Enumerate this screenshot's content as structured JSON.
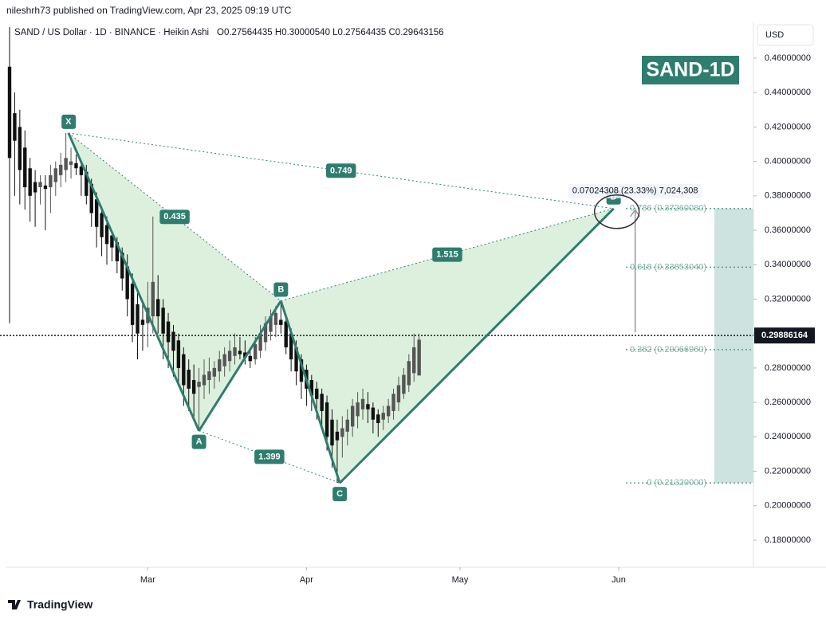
{
  "header": {
    "publisher": "nileshrh73 published on TradingView.com, Apr 23, 2025 09:19 UTC",
    "symbol": "SAND / US Dollar · 1D · BINANCE · Heikin Ashi",
    "ohlc": "O0.27564435 H0.30000540 L0.27564435 C0.29643156",
    "currency": "USD"
  },
  "footer": {
    "brand": "TradingView"
  },
  "chart_data": {
    "type": "candlestick",
    "title": "SAND-1D",
    "up_color": "#555555",
    "down_color": "#111111",
    "xlim": [
      0,
      145
    ],
    "xticks": [
      {
        "value": 27,
        "label": "Mar"
      },
      {
        "value": 58,
        "label": "Apr"
      },
      {
        "value": 88,
        "label": "May"
      },
      {
        "value": 119,
        "label": "Jun"
      }
    ],
    "ylim": [
      0.1675,
      0.4808
    ],
    "yticks": [
      {
        "value": 0.18,
        "label": "0.18000000"
      },
      {
        "value": 0.2,
        "label": "0.20000000"
      },
      {
        "value": 0.22,
        "label": "0.22000000"
      },
      {
        "value": 0.24,
        "label": "0.24000000"
      },
      {
        "value": 0.26,
        "label": "0.26000000"
      },
      {
        "value": 0.28,
        "label": "0.28000000"
      },
      {
        "value": 0.3,
        "label": "0.30000000"
      },
      {
        "value": 0.32,
        "label": "0.32000000"
      },
      {
        "value": 0.34,
        "label": "0.34000000"
      },
      {
        "value": 0.36,
        "label": "0.36000000"
      },
      {
        "value": 0.38,
        "label": "0.38000000"
      },
      {
        "value": 0.4,
        "label": "0.40000000"
      },
      {
        "value": 0.42,
        "label": "0.42000000"
      },
      {
        "value": 0.44,
        "label": "0.44000000"
      },
      {
        "value": 0.46,
        "label": "0.46000000"
      }
    ],
    "candles": [
      [
        0.455,
        0.478,
        0.306,
        0.402
      ],
      [
        0.428,
        0.44,
        0.38,
        0.412
      ],
      [
        0.42,
        0.43,
        0.375,
        0.395
      ],
      [
        0.408,
        0.418,
        0.372,
        0.385
      ],
      [
        0.396,
        0.402,
        0.365,
        0.38
      ],
      [
        0.388,
        0.395,
        0.362,
        0.382
      ],
      [
        0.385,
        0.392,
        0.375,
        0.388
      ],
      [
        0.386,
        0.392,
        0.36,
        0.384
      ],
      [
        0.385,
        0.398,
        0.37,
        0.392
      ],
      [
        0.388,
        0.4,
        0.38,
        0.396
      ],
      [
        0.392,
        0.405,
        0.385,
        0.398
      ],
      [
        0.395,
        0.4165,
        0.388,
        0.402
      ],
      [
        0.398,
        0.408,
        0.39,
        0.4
      ],
      [
        0.399,
        0.404,
        0.392,
        0.396
      ],
      [
        0.397,
        0.4,
        0.38,
        0.392
      ],
      [
        0.394,
        0.398,
        0.375,
        0.38
      ],
      [
        0.387,
        0.39,
        0.362,
        0.37
      ],
      [
        0.378,
        0.382,
        0.35,
        0.362
      ],
      [
        0.37,
        0.374,
        0.345,
        0.356
      ],
      [
        0.363,
        0.368,
        0.34,
        0.352
      ],
      [
        0.357,
        0.36,
        0.342,
        0.35
      ],
      [
        0.353,
        0.356,
        0.335,
        0.342
      ],
      [
        0.347,
        0.35,
        0.325,
        0.332
      ],
      [
        0.339,
        0.346,
        0.31,
        0.32
      ],
      [
        0.329,
        0.335,
        0.295,
        0.305
      ],
      [
        0.317,
        0.325,
        0.285,
        0.3
      ],
      [
        0.308,
        0.318,
        0.29,
        0.305
      ],
      [
        0.306,
        0.33,
        0.292,
        0.315
      ],
      [
        0.31,
        0.368,
        0.3,
        0.33
      ],
      [
        0.32,
        0.334,
        0.3,
        0.31
      ],
      [
        0.315,
        0.32,
        0.285,
        0.3
      ],
      [
        0.307,
        0.312,
        0.28,
        0.295
      ],
      [
        0.301,
        0.305,
        0.275,
        0.29
      ],
      [
        0.296,
        0.3,
        0.27,
        0.28
      ],
      [
        0.288,
        0.292,
        0.258,
        0.27
      ],
      [
        0.279,
        0.285,
        0.255,
        0.268
      ],
      [
        0.273,
        0.282,
        0.25,
        0.265
      ],
      [
        0.269,
        0.28,
        0.2435,
        0.272
      ],
      [
        0.27,
        0.285,
        0.262,
        0.276
      ],
      [
        0.273,
        0.286,
        0.265,
        0.278
      ],
      [
        0.275,
        0.284,
        0.268,
        0.28
      ],
      [
        0.278,
        0.29,
        0.272,
        0.285
      ],
      [
        0.281,
        0.292,
        0.275,
        0.288
      ],
      [
        0.284,
        0.296,
        0.278,
        0.29
      ],
      [
        0.287,
        0.3,
        0.282,
        0.292
      ],
      [
        0.29,
        0.298,
        0.285,
        0.288
      ],
      [
        0.289,
        0.296,
        0.282,
        0.286
      ],
      [
        0.287,
        0.292,
        0.28,
        0.284
      ],
      [
        0.285,
        0.298,
        0.282,
        0.294
      ],
      [
        0.29,
        0.305,
        0.286,
        0.3
      ],
      [
        0.295,
        0.31,
        0.29,
        0.306
      ],
      [
        0.301,
        0.314,
        0.296,
        0.31
      ],
      [
        0.305,
        0.316,
        0.298,
        0.312
      ],
      [
        0.308,
        0.319,
        0.3,
        0.305
      ],
      [
        0.307,
        0.31,
        0.288,
        0.292
      ],
      [
        0.3,
        0.303,
        0.278,
        0.285
      ],
      [
        0.292,
        0.296,
        0.27,
        0.278
      ],
      [
        0.285,
        0.288,
        0.262,
        0.272
      ],
      [
        0.279,
        0.282,
        0.258,
        0.268
      ],
      [
        0.273,
        0.276,
        0.255,
        0.264
      ],
      [
        0.268,
        0.272,
        0.25,
        0.262
      ],
      [
        0.265,
        0.268,
        0.245,
        0.255
      ],
      [
        0.26,
        0.264,
        0.232,
        0.24
      ],
      [
        0.25,
        0.256,
        0.222,
        0.235
      ],
      [
        0.243,
        0.25,
        0.2132,
        0.238
      ],
      [
        0.24,
        0.252,
        0.228,
        0.245
      ],
      [
        0.243,
        0.256,
        0.235,
        0.25
      ],
      [
        0.246,
        0.262,
        0.24,
        0.258
      ],
      [
        0.252,
        0.266,
        0.245,
        0.26
      ],
      [
        0.256,
        0.268,
        0.25,
        0.262
      ],
      [
        0.259,
        0.266,
        0.248,
        0.256
      ],
      [
        0.257,
        0.26,
        0.242,
        0.25
      ],
      [
        0.253,
        0.256,
        0.24,
        0.248
      ],
      [
        0.25,
        0.258,
        0.244,
        0.254
      ],
      [
        0.252,
        0.262,
        0.248,
        0.258
      ],
      [
        0.255,
        0.268,
        0.25,
        0.265
      ],
      [
        0.26,
        0.275,
        0.255,
        0.27
      ],
      [
        0.265,
        0.28,
        0.262,
        0.276
      ],
      [
        0.27,
        0.288,
        0.266,
        0.284
      ],
      [
        0.277,
        0.3,
        0.272,
        0.292
      ],
      [
        0.27564435,
        0.3000054,
        0.27564435,
        0.29643156
      ]
    ],
    "last_price": {
      "value": 0.29886164,
      "label": "0.29886164"
    },
    "pattern": {
      "color": "#2e7d6f",
      "fill": "#d4ecd4",
      "points": [
        {
          "label": "X",
          "x": 11.5,
          "y": 0.4165
        },
        {
          "label": "A",
          "x": 37,
          "y": 0.2435
        },
        {
          "label": "B",
          "x": 53,
          "y": 0.319
        },
        {
          "label": "C",
          "x": 64.5,
          "y": 0.2132
        },
        {
          "label": "D",
          "x": 118,
          "y": 0.3726
        }
      ],
      "ratios": [
        "0.435",
        "0.749",
        "1.399",
        "1.515"
      ]
    },
    "fib_levels": [
      {
        "value": 0.3726008,
        "label": "0.786 (0.37260080)"
      },
      {
        "value": 0.3385304,
        "label": "0.618 (0.33853040)"
      },
      {
        "value": 0.2906696,
        "label": "0.382 (0.29066960)"
      },
      {
        "value": 0.2132,
        "label": "0 (0.21320000)"
      }
    ],
    "measure_label": "0.07024308 (23.33%) 7,024,308"
  }
}
